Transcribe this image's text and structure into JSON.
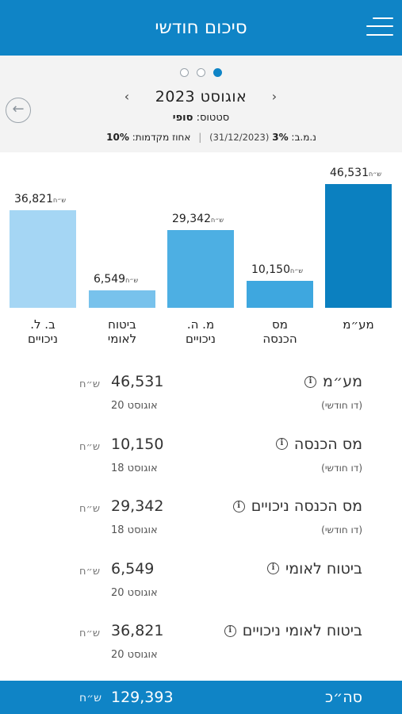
{
  "header": {
    "title": "סיכום חודשי"
  },
  "pager": {
    "count": 3,
    "active_index": 0
  },
  "summary": {
    "month": "אוגוסט 2023",
    "prev_arrow": "‹",
    "next_arrow": "›",
    "back_symbol": "←",
    "status_label": "סטטוס:",
    "status_value": "סופי",
    "nmb_label": "נ.מ.ב:",
    "nmb_value": "3%",
    "nmb_date": "(31/12/2023)",
    "separator": "|",
    "advance_label": "אחוז מקדמות:",
    "advance_value": "10%"
  },
  "currency": "ש״ח",
  "chart_data": {
    "type": "bar",
    "categories": [
      "מע״מ",
      "מס הכנסה",
      "מ. ה. ניכויים",
      "ביטוח לאומי",
      "ב. ל. ניכויים"
    ],
    "values": [
      46531,
      10150,
      29342,
      6549,
      36821
    ],
    "value_labels": [
      "46,531",
      "10,150",
      "29,342",
      "6,549",
      "36,821"
    ],
    "colors": [
      "#0b80c0",
      "#3ea7df",
      "#4dafe3",
      "#78c2ec",
      "#a5d6f4"
    ],
    "ylim": [
      0,
      46531
    ],
    "category_lines": [
      [
        "מע״מ"
      ],
      [
        "מס",
        "הכנסה"
      ],
      [
        "מ. ה.",
        "ניכויים"
      ],
      [
        "ביטוח",
        "לאומי"
      ],
      [
        "ב. ל.",
        "ניכויים"
      ]
    ]
  },
  "rows": [
    {
      "title": "מע״מ",
      "subtitle": "(דו חודשי)",
      "amount": "46,531",
      "due": "אוגוסט 20"
    },
    {
      "title": "מס הכנסה",
      "subtitle": "(דו חודשי)",
      "amount": "10,150",
      "due": "אוגוסט 18"
    },
    {
      "title": "מס הכנסה ניכויים",
      "subtitle": "(דו חודשי)",
      "amount": "29,342",
      "due": "אוגוסט 18"
    },
    {
      "title": "ביטוח לאומי",
      "subtitle": "",
      "amount": "6,549",
      "due": "אוגוסט 20"
    },
    {
      "title": "ביטוח לאומי ניכויים",
      "subtitle": "",
      "amount": "36,821",
      "due": "אוגוסט 20"
    }
  ],
  "info_symbol": "i",
  "footer": {
    "label": "סה״כ",
    "amount": "129,393"
  }
}
